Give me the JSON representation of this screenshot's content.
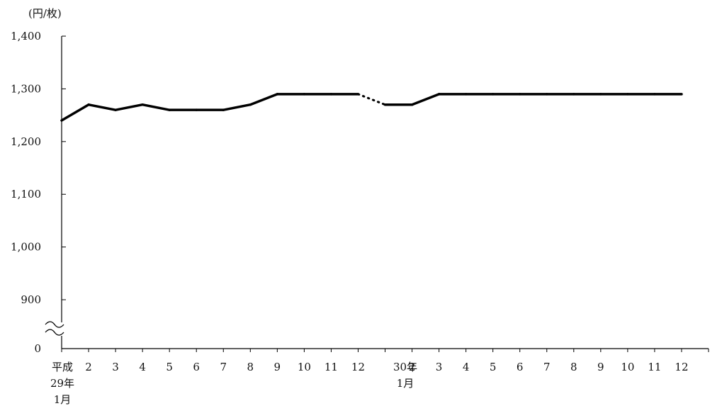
{
  "chart_data": {
    "type": "line",
    "unit_label": "(円/枚)",
    "y_ticks": [
      "0",
      "900",
      "1,000",
      "1,100",
      "1,200",
      "1,300",
      "1,400"
    ],
    "ylim": [
      900,
      1400
    ],
    "y_axis_break": true,
    "grid": false,
    "legend": "none",
    "x_tick_labels": [
      [
        "平成",
        "29年",
        "1月"
      ],
      [
        "2"
      ],
      [
        "3"
      ],
      [
        "4"
      ],
      [
        "5"
      ],
      [
        "6"
      ],
      [
        "7"
      ],
      [
        "8"
      ],
      [
        "9"
      ],
      [
        "10"
      ],
      [
        "11"
      ],
      [
        "12"
      ],
      [
        "30年",
        "1月"
      ],
      [
        "2"
      ],
      [
        "3"
      ],
      [
        "4"
      ],
      [
        "5"
      ],
      [
        "6"
      ],
      [
        "7"
      ],
      [
        "8"
      ],
      [
        "9"
      ],
      [
        "10"
      ],
      [
        "11"
      ],
      [
        "12"
      ]
    ],
    "series": [
      {
        "values": [
          1240,
          1270,
          1260,
          1270,
          1260,
          1260,
          1260,
          1270,
          1290,
          1290,
          1290,
          1290,
          1270,
          1270,
          1290,
          1290,
          1290,
          1290,
          1290,
          1290,
          1290,
          1290,
          1290,
          1290
        ],
        "color": "#000000",
        "dotted_segments": [
          [
            11,
            12
          ]
        ]
      }
    ]
  }
}
